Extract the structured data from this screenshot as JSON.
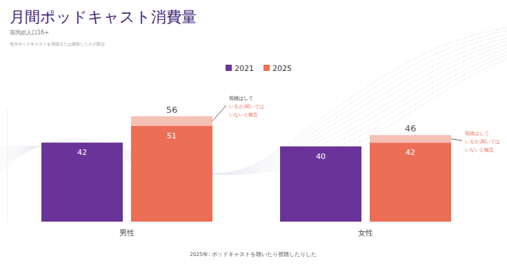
{
  "chart_data": {
    "type": "bar",
    "title": "月間ポッドキャスト消費量",
    "subtitle": "英国総人口16+",
    "note": "先月ポッドキャストを視聴または聴取した人の割合",
    "footnote": "2025年: ポッドキャストを聴いたり視聴したりした",
    "categories": [
      "男性",
      "女性"
    ],
    "series": [
      {
        "name": "2021",
        "color": "#6a3399",
        "values": [
          42,
          40
        ]
      },
      {
        "name": "2025",
        "color": "#ec6e55",
        "values": [
          51,
          42
        ]
      },
      {
        "name": "視聴はしているが,聞いてはいないと報告",
        "color": "#f4c1b4",
        "values": [
          5,
          4
        ],
        "stacked": true
      }
    ],
    "total_values": [
      56,
      46
    ],
    "ylim": [
      0,
      60
    ],
    "tick_labels": "x",
    "legend": "top",
    "data_labels": true,
    "grid": false
  }
}
